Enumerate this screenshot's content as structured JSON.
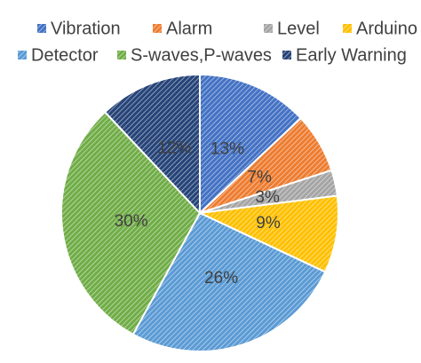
{
  "chart_data": {
    "type": "pie",
    "categories": [
      "Vibration",
      "Alarm",
      "Level",
      "Arduino",
      "Detector",
      "S-waves,P-waves",
      "Early Warning"
    ],
    "values": [
      13,
      7,
      3,
      9,
      26,
      30,
      12
    ],
    "value_labels": [
      "13%",
      "7%",
      "3%",
      "9%",
      "26%",
      "30%",
      "12%"
    ],
    "colors": [
      "#4472c4",
      "#ed7d31",
      "#a5a5a5",
      "#ffc000",
      "#5b9bd5",
      "#70ad47",
      "#264478"
    ],
    "legend": "top"
  }
}
